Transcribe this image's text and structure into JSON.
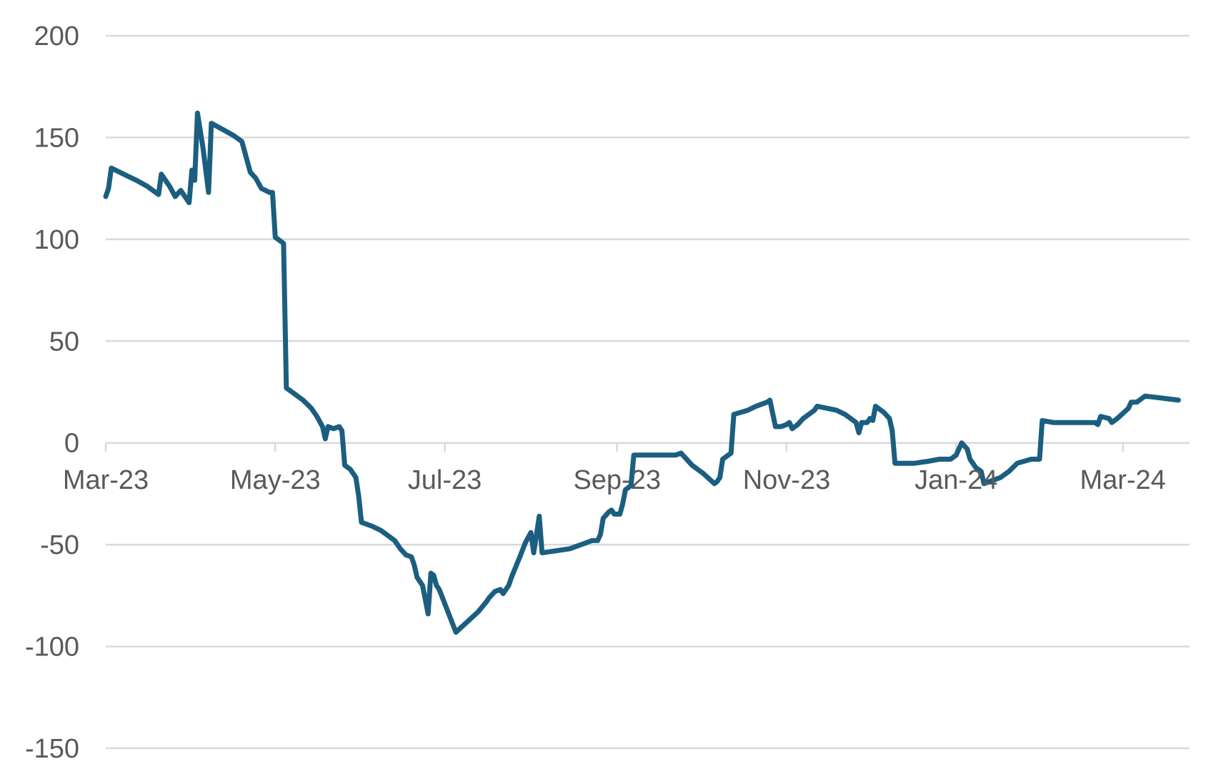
{
  "chart_data": {
    "type": "line",
    "title": "",
    "xlabel": "",
    "ylabel": "",
    "ylim": [
      -150,
      200
    ],
    "yticks": [
      200,
      150,
      100,
      50,
      0,
      -50,
      -100,
      -150
    ],
    "xlim": [
      "2023-03-01",
      "2024-03-25"
    ],
    "xticks": [
      {
        "date": "2023-03-01",
        "label": "Mar-23"
      },
      {
        "date": "2023-05-01",
        "label": "May-23"
      },
      {
        "date": "2023-07-01",
        "label": "Jul-23"
      },
      {
        "date": "2023-09-01",
        "label": "Sep-23"
      },
      {
        "date": "2023-11-01",
        "label": "Nov-23"
      },
      {
        "date": "2024-01-01",
        "label": "Jan-24"
      },
      {
        "date": "2024-03-01",
        "label": "Mar-24"
      }
    ],
    "grid": true,
    "legend": "none",
    "series": [
      {
        "color": "#1b5e80",
        "points": [
          [
            "2023-03-01",
            121
          ],
          [
            "2023-03-02",
            125
          ],
          [
            "2023-03-03",
            135
          ],
          [
            "2023-03-09",
            131
          ],
          [
            "2023-03-12",
            129
          ],
          [
            "2023-03-16",
            126
          ],
          [
            "2023-03-19",
            123
          ],
          [
            "2023-03-20",
            122
          ],
          [
            "2023-03-21",
            132
          ],
          [
            "2023-03-24",
            126
          ],
          [
            "2023-03-26",
            121
          ],
          [
            "2023-03-28",
            124
          ],
          [
            "2023-03-30",
            120
          ],
          [
            "2023-03-31",
            118
          ],
          [
            "2023-04-01",
            134
          ],
          [
            "2023-04-02",
            129
          ],
          [
            "2023-04-03",
            162
          ],
          [
            "2023-04-05",
            145
          ],
          [
            "2023-04-07",
            123
          ],
          [
            "2023-04-08",
            157
          ],
          [
            "2023-04-12",
            154
          ],
          [
            "2023-04-16",
            151
          ],
          [
            "2023-04-19",
            148
          ],
          [
            "2023-04-22",
            133
          ],
          [
            "2023-04-24",
            130
          ],
          [
            "2023-04-26",
            125
          ],
          [
            "2023-04-29",
            123
          ],
          [
            "2023-04-30",
            123
          ],
          [
            "2023-05-01",
            101
          ],
          [
            "2023-05-03",
            99
          ],
          [
            "2023-05-04",
            98
          ],
          [
            "2023-05-05",
            27
          ],
          [
            "2023-05-08",
            24
          ],
          [
            "2023-05-11",
            21
          ],
          [
            "2023-05-14",
            17
          ],
          [
            "2023-05-16",
            13
          ],
          [
            "2023-05-18",
            8
          ],
          [
            "2023-05-19",
            2
          ],
          [
            "2023-05-20",
            8
          ],
          [
            "2023-05-22",
            7
          ],
          [
            "2023-05-24",
            8
          ],
          [
            "2023-05-25",
            6
          ],
          [
            "2023-05-26",
            -11
          ],
          [
            "2023-05-28",
            -13
          ],
          [
            "2023-05-30",
            -17
          ],
          [
            "2023-05-31",
            -26
          ],
          [
            "2023-06-01",
            -39
          ],
          [
            "2023-06-05",
            -41
          ],
          [
            "2023-06-08",
            -43
          ],
          [
            "2023-06-11",
            -46
          ],
          [
            "2023-06-13",
            -48
          ],
          [
            "2023-06-15",
            -52
          ],
          [
            "2023-06-17",
            -55
          ],
          [
            "2023-06-19",
            -56
          ],
          [
            "2023-06-20",
            -60
          ],
          [
            "2023-06-21",
            -66
          ],
          [
            "2023-06-22",
            -68
          ],
          [
            "2023-06-23",
            -70
          ],
          [
            "2023-06-25",
            -84
          ],
          [
            "2023-06-26",
            -64
          ],
          [
            "2023-06-27",
            -65
          ],
          [
            "2023-06-28",
            -70
          ],
          [
            "2023-06-29",
            -72
          ],
          [
            "2023-07-05",
            -93
          ],
          [
            "2023-07-09",
            -88
          ],
          [
            "2023-07-13",
            -83
          ],
          [
            "2023-07-16",
            -78
          ],
          [
            "2023-07-17",
            -76
          ],
          [
            "2023-07-19",
            -73
          ],
          [
            "2023-07-21",
            -72
          ],
          [
            "2023-07-22",
            -74
          ],
          [
            "2023-07-24",
            -70
          ],
          [
            "2023-07-25",
            -66
          ],
          [
            "2023-07-28",
            -56
          ],
          [
            "2023-07-30",
            -49
          ],
          [
            "2023-08-01",
            -44
          ],
          [
            "2023-08-02",
            -54
          ],
          [
            "2023-08-04",
            -36
          ],
          [
            "2023-08-05",
            -54
          ],
          [
            "2023-08-10",
            -53
          ],
          [
            "2023-08-15",
            -52
          ],
          [
            "2023-08-19",
            -50
          ],
          [
            "2023-08-21",
            -49
          ],
          [
            "2023-08-23",
            -48
          ],
          [
            "2023-08-25",
            -48
          ],
          [
            "2023-08-26",
            -45
          ],
          [
            "2023-08-27",
            -37
          ],
          [
            "2023-08-29",
            -34
          ],
          [
            "2023-08-30",
            -33
          ],
          [
            "2023-08-31",
            -35
          ],
          [
            "2023-09-01",
            -35
          ],
          [
            "2023-09-02",
            -35
          ],
          [
            "2023-09-03",
            -30
          ],
          [
            "2023-09-04",
            -23
          ],
          [
            "2023-09-05",
            -22
          ],
          [
            "2023-09-06",
            -21
          ],
          [
            "2023-09-07",
            -6
          ],
          [
            "2023-09-15",
            -6
          ],
          [
            "2023-09-22",
            -6
          ],
          [
            "2023-09-24",
            -5
          ],
          [
            "2023-09-26",
            -8
          ],
          [
            "2023-09-28",
            -11
          ],
          [
            "2023-10-02",
            -15
          ],
          [
            "2023-10-06",
            -20
          ],
          [
            "2023-10-07",
            -19
          ],
          [
            "2023-10-08",
            -17
          ],
          [
            "2023-10-09",
            -8
          ],
          [
            "2023-10-12",
            -5
          ],
          [
            "2023-10-13",
            14
          ],
          [
            "2023-10-18",
            16
          ],
          [
            "2023-10-21",
            18
          ],
          [
            "2023-10-23",
            19
          ],
          [
            "2023-10-25",
            20
          ],
          [
            "2023-10-26",
            21
          ],
          [
            "2023-10-28",
            8
          ],
          [
            "2023-10-30",
            8
          ],
          [
            "2023-11-01",
            9
          ],
          [
            "2023-11-02",
            10
          ],
          [
            "2023-11-03",
            7
          ],
          [
            "2023-11-05",
            9
          ],
          [
            "2023-11-07",
            12
          ],
          [
            "2023-11-09",
            14
          ],
          [
            "2023-11-11",
            16
          ],
          [
            "2023-11-12",
            18
          ],
          [
            "2023-11-19",
            16
          ],
          [
            "2023-11-22",
            14
          ],
          [
            "2023-11-24",
            12
          ],
          [
            "2023-11-26",
            10
          ],
          [
            "2023-11-27",
            5
          ],
          [
            "2023-11-28",
            10
          ],
          [
            "2023-11-30",
            10
          ],
          [
            "2023-12-01",
            12
          ],
          [
            "2023-12-02",
            11
          ],
          [
            "2023-12-03",
            18
          ],
          [
            "2023-12-06",
            15
          ],
          [
            "2023-12-08",
            12
          ],
          [
            "2023-12-09",
            6
          ],
          [
            "2023-12-10",
            -10
          ],
          [
            "2023-12-17",
            -10
          ],
          [
            "2023-12-22",
            -9
          ],
          [
            "2023-12-26",
            -8
          ],
          [
            "2023-12-30",
            -8
          ],
          [
            "2023-12-31",
            -7
          ],
          [
            "2024-01-01",
            -6
          ],
          [
            "2024-01-03",
            0
          ],
          [
            "2024-01-05",
            -3
          ],
          [
            "2024-01-06",
            -8
          ],
          [
            "2024-01-08",
            -12
          ],
          [
            "2024-01-10",
            -14
          ],
          [
            "2024-01-11",
            -20
          ],
          [
            "2024-01-13",
            -19
          ],
          [
            "2024-01-17",
            -17
          ],
          [
            "2024-01-20",
            -14
          ],
          [
            "2024-01-23",
            -10
          ],
          [
            "2024-01-28",
            -8
          ],
          [
            "2024-01-31",
            -8
          ],
          [
            "2024-02-01",
            11
          ],
          [
            "2024-02-05",
            10
          ],
          [
            "2024-02-13",
            10
          ],
          [
            "2024-02-20",
            10
          ],
          [
            "2024-02-21",
            9
          ],
          [
            "2024-02-22",
            13
          ],
          [
            "2024-02-25",
            12
          ],
          [
            "2024-02-26",
            10
          ],
          [
            "2024-02-28",
            12
          ],
          [
            "2024-03-03",
            17
          ],
          [
            "2024-03-04",
            20
          ],
          [
            "2024-03-06",
            20
          ],
          [
            "2024-03-09",
            23
          ],
          [
            "2024-03-15",
            22
          ],
          [
            "2024-03-21",
            21
          ]
        ]
      }
    ]
  }
}
